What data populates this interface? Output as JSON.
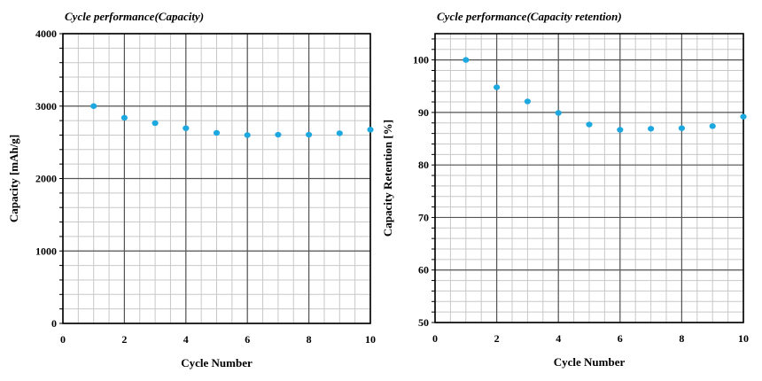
{
  "colors": {
    "marker": "#1ea8e0",
    "minor_grid": "#c8c8c8",
    "major_grid": "#555555",
    "frame": "#000000"
  },
  "chart_data": [
    {
      "type": "scatter",
      "title": "Cycle performance(Capacity)",
      "xlabel": "Cycle Number",
      "ylabel": "Capacity  [mAh/g]",
      "xlim": [
        0,
        10
      ],
      "ylim": [
        0,
        4000
      ],
      "xticks": [
        0,
        2,
        4,
        6,
        8,
        10
      ],
      "yticks": [
        0,
        1000,
        2000,
        3000,
        4000
      ],
      "x_minor_step": 0.5,
      "y_minor_step": 200,
      "grid": true,
      "series": [
        {
          "x": [
            1,
            2,
            3,
            4,
            5,
            6,
            7,
            8,
            9,
            10
          ],
          "values": [
            3000,
            2840,
            2765,
            2695,
            2630,
            2600,
            2605,
            2605,
            2625,
            2675
          ]
        }
      ]
    },
    {
      "type": "scatter",
      "title": "Cycle performance(Capacity retention)",
      "xlabel": "Cycle Number",
      "ylabel": "Capacity  Retention  [%]",
      "xlim": [
        0,
        10
      ],
      "ylim": [
        50,
        105
      ],
      "xticks": [
        0,
        2,
        4,
        6,
        8,
        10
      ],
      "yticks": [
        50,
        60,
        70,
        80,
        90,
        100
      ],
      "x_minor_step": 0.5,
      "y_minor_step": 2,
      "grid": true,
      "series": [
        {
          "x": [
            1,
            2,
            3,
            4,
            5,
            6,
            7,
            8,
            9,
            10
          ],
          "values": [
            100,
            94.8,
            92.1,
            89.9,
            87.7,
            86.7,
            86.9,
            87.0,
            87.4,
            89.2
          ]
        }
      ]
    }
  ]
}
